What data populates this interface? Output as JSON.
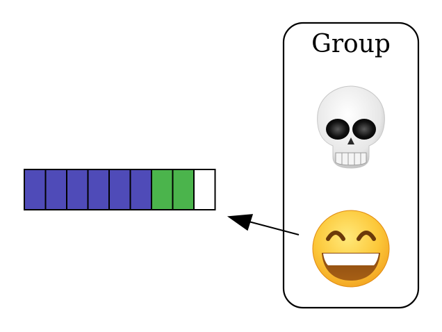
{
  "group": {
    "title": "Group",
    "members": [
      {
        "icon": "skull-icon"
      },
      {
        "icon": "grinning-face-icon"
      }
    ]
  },
  "bar": {
    "cells": [
      {
        "state": "filled-blue"
      },
      {
        "state": "filled-blue"
      },
      {
        "state": "filled-blue"
      },
      {
        "state": "filled-blue"
      },
      {
        "state": "filled-blue"
      },
      {
        "state": "filled-blue"
      },
      {
        "state": "filled-green"
      },
      {
        "state": "filled-green"
      },
      {
        "state": "empty"
      }
    ]
  },
  "edge": {
    "from": "grinning-face-icon",
    "to": "bar"
  },
  "colors": {
    "filled-blue": "#4f4bb8",
    "filled-green": "#4bb44c",
    "empty": "#ffffff",
    "stroke": "#000000"
  }
}
